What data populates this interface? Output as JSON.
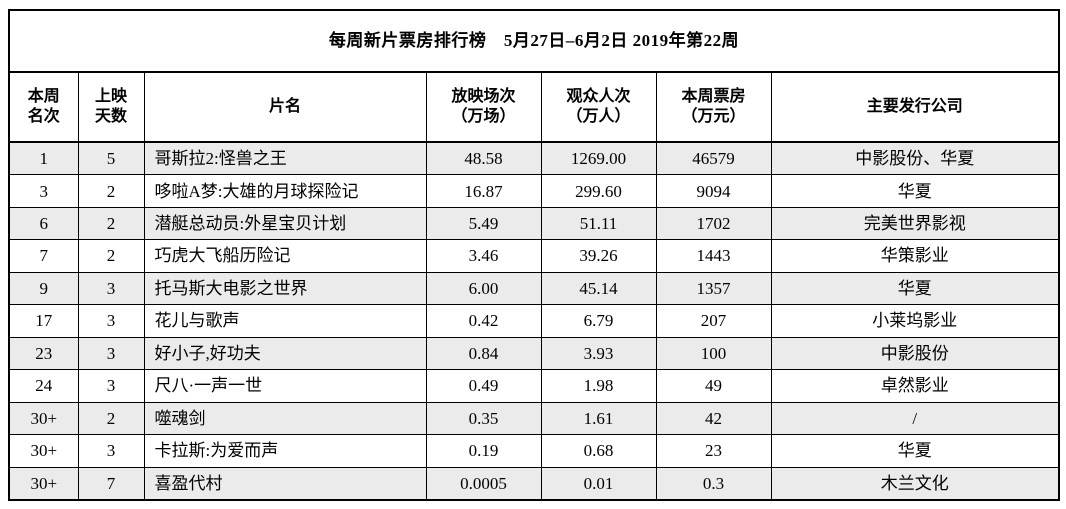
{
  "title": "每周新片票房排行榜　5月27日–6月2日 2019年第22周",
  "table": {
    "columns": [
      {
        "key": "rank",
        "line1": "本周",
        "line2": "名次"
      },
      {
        "key": "days",
        "line1": "上映",
        "line2": "天数"
      },
      {
        "key": "title",
        "line1": "片名"
      },
      {
        "key": "screenings",
        "line1": "放映场次",
        "line2": "（万场）"
      },
      {
        "key": "audience",
        "line1": "观众人次",
        "line2": "（万人）"
      },
      {
        "key": "box_office",
        "line1": "本周票房",
        "line2": "（万元）"
      },
      {
        "key": "distributor",
        "line1": "主要发行公司"
      }
    ],
    "rows": [
      {
        "rank": "1",
        "days": "5",
        "title": "哥斯拉2:怪兽之王",
        "screenings": "48.58",
        "audience": "1269.00",
        "box_office": "46579",
        "distributor": "中影股份、华夏"
      },
      {
        "rank": "3",
        "days": "2",
        "title": "哆啦A梦:大雄的月球探险记",
        "screenings": "16.87",
        "audience": "299.60",
        "box_office": "9094",
        "distributor": "华夏"
      },
      {
        "rank": "6",
        "days": "2",
        "title": "潜艇总动员:外星宝贝计划",
        "screenings": "5.49",
        "audience": "51.11",
        "box_office": "1702",
        "distributor": "完美世界影视"
      },
      {
        "rank": "7",
        "days": "2",
        "title": "巧虎大飞船历险记",
        "screenings": "3.46",
        "audience": "39.26",
        "box_office": "1443",
        "distributor": "华策影业"
      },
      {
        "rank": "9",
        "days": "3",
        "title": "托马斯大电影之世界",
        "screenings": "6.00",
        "audience": "45.14",
        "box_office": "1357",
        "distributor": "华夏"
      },
      {
        "rank": "17",
        "days": "3",
        "title": "花儿与歌声",
        "screenings": "0.42",
        "audience": "6.79",
        "box_office": "207",
        "distributor": "小莱坞影业"
      },
      {
        "rank": "23",
        "days": "3",
        "title": "好小子,好功夫",
        "screenings": "0.84",
        "audience": "3.93",
        "box_office": "100",
        "distributor": "中影股份"
      },
      {
        "rank": "24",
        "days": "3",
        "title": "尺八·一声一世",
        "screenings": "0.49",
        "audience": "1.98",
        "box_office": "49",
        "distributor": "卓然影业"
      },
      {
        "rank": "30+",
        "days": "2",
        "title": "噬魂剑",
        "screenings": "0.35",
        "audience": "1.61",
        "box_office": "42",
        "distributor": "/"
      },
      {
        "rank": "30+",
        "days": "3",
        "title": "卡拉斯:为爱而声",
        "screenings": "0.19",
        "audience": "0.68",
        "box_office": "23",
        "distributor": "华夏"
      },
      {
        "rank": "30+",
        "days": "7",
        "title": "喜盈代村",
        "screenings": "0.0005",
        "audience": "0.01",
        "box_office": "0.3",
        "distributor": "木兰文化"
      }
    ]
  }
}
